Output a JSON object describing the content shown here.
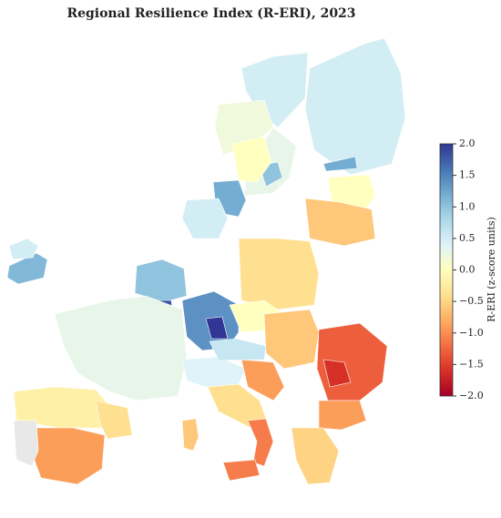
{
  "chart_data": {
    "type": "choropleth",
    "title": "Regional Resilience Index (R-ERI), 2023",
    "colorbar_label": "R-ERI (z-score units)",
    "colormap": "RdYlBu",
    "missing_color": "#e8e8e8",
    "clim": [
      -2,
      2
    ],
    "cticks": [
      {
        "value": 2,
        "label": "2.0"
      },
      {
        "value": 1.5,
        "label": "1.5"
      },
      {
        "value": 1,
        "label": "1.0"
      },
      {
        "value": 0.5,
        "label": "0.5"
      },
      {
        "value": 0,
        "label": "0.0"
      },
      {
        "value": -0.5,
        "label": "−0.5"
      },
      {
        "value": -1,
        "label": "−1.0"
      },
      {
        "value": -1.5,
        "label": "−1.5"
      },
      {
        "value": -2,
        "label": "−2.0"
      }
    ],
    "values": [
      0.5,
      0.5,
      0.3,
      1.0,
      0.2,
      0.0,
      1.2,
      1.2,
      0.0,
      -0.6,
      1.1,
      0.5,
      0.5,
      1.0,
      1.8,
      0.3,
      1.4,
      2.0,
      -0.4,
      0.0,
      -0.6,
      -1.3,
      -1.6,
      -0.9,
      -0.5,
      0.4,
      -0.4,
      -1.1,
      -1.1,
      -0.6,
      -0.9,
      -0.2,
      -0.9,
      -0.4,
      null,
      0.6
    ]
  }
}
